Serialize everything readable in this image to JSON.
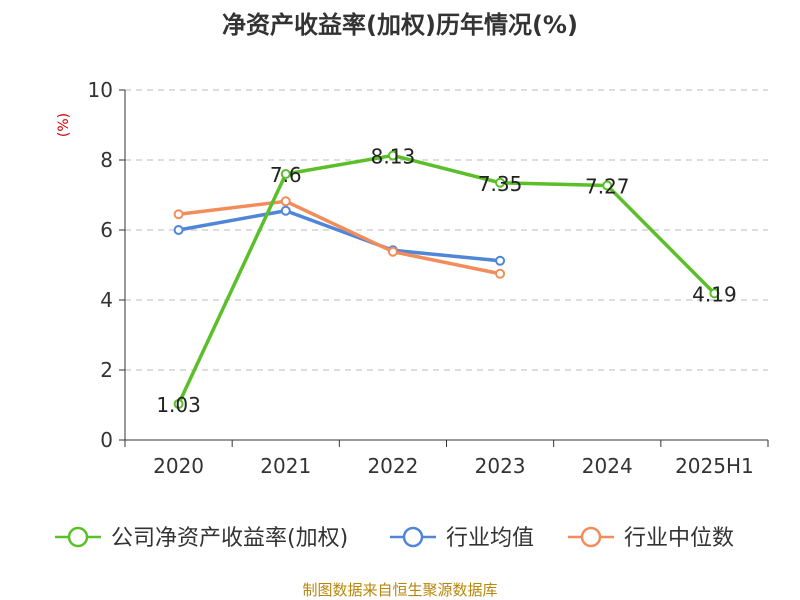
{
  "chart_data": {
    "type": "line",
    "title": "净资产收益率(加权)历年情况(%)",
    "ylabel": "(%)",
    "xlabel": "",
    "categories": [
      "2020",
      "2021",
      "2022",
      "2023",
      "2024",
      "2025H1"
    ],
    "ylim": [
      0,
      10
    ],
    "yticks": [
      "0",
      "2",
      "4",
      "6",
      "8",
      "10"
    ],
    "grid": true,
    "legend_position": "bottom",
    "series": [
      {
        "name": "公司净资产收益率(加权)",
        "color": "#5bbf2a",
        "values": [
          1.03,
          7.6,
          8.13,
          7.35,
          7.27,
          4.19
        ],
        "labels": [
          "1.03",
          "7.6",
          "8.13",
          "7.35",
          "7.27",
          "4.19"
        ]
      },
      {
        "name": "行业均值",
        "color": "#4f86d8",
        "values": [
          6.0,
          6.55,
          5.42,
          5.12,
          null,
          null
        ]
      },
      {
        "name": "行业中位数",
        "color": "#f28c5a",
        "values": [
          6.45,
          6.82,
          5.38,
          4.75,
          null,
          null
        ]
      }
    ],
    "source": "制图数据来自恒生聚源数据库"
  }
}
